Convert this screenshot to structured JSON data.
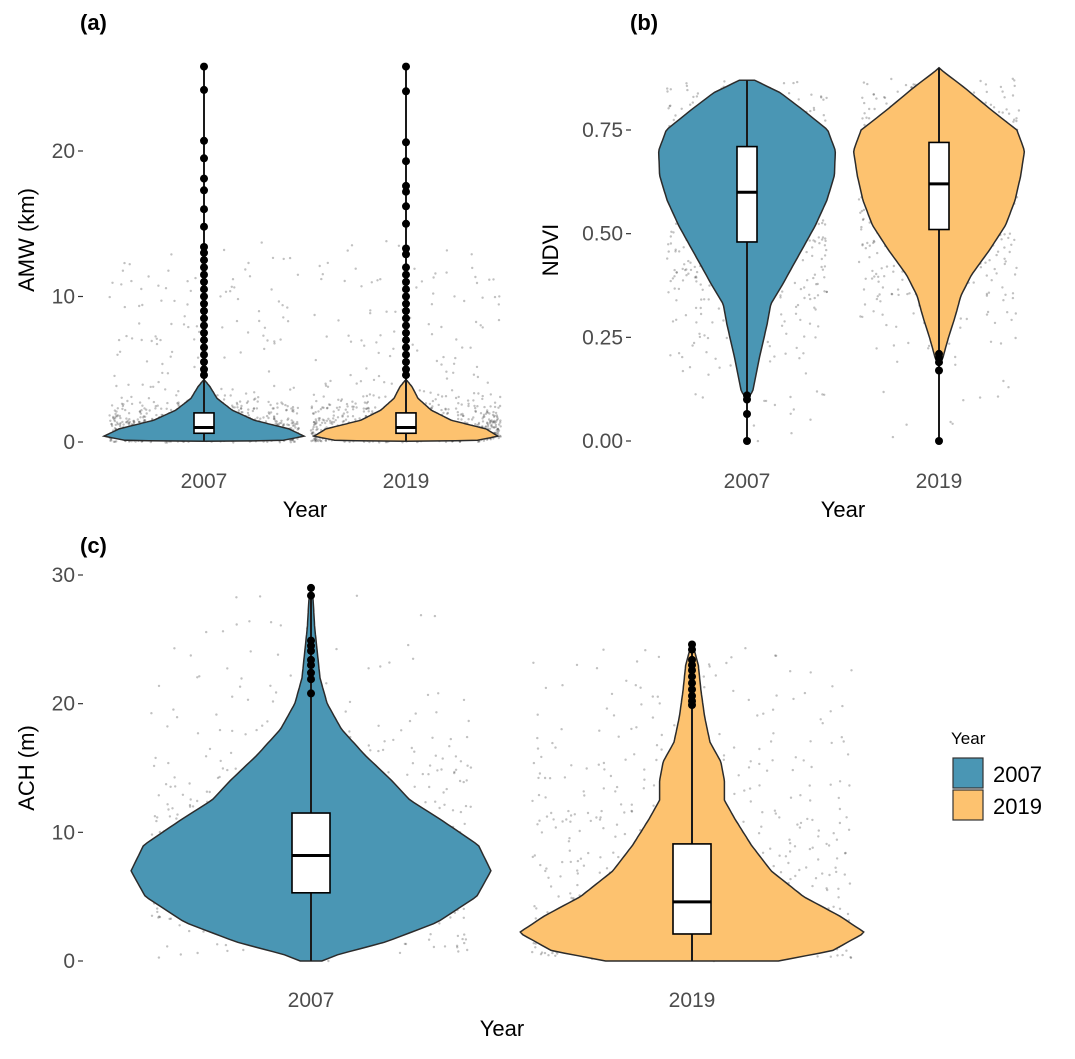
{
  "chart_data": [
    {
      "panel": "(a)",
      "type": "violin",
      "xlabel": "Year",
      "ylabel": "AMW (km)",
      "categories": [
        "2007",
        "2019"
      ],
      "yticks": [
        "0",
        "10",
        "20"
      ],
      "ylim": [
        0,
        26
      ],
      "series": [
        {
          "name": "2007",
          "min": 0.1,
          "q1": 0.6,
          "median": 1.0,
          "q3": 2.0,
          "whisker_high": 4.2,
          "max": 25.8,
          "outliers": [
            25.8,
            24.2,
            20.7,
            19.5,
            18.1,
            17.3,
            16.0,
            14.8,
            13.4,
            13.0,
            12.5,
            12.0,
            11.5,
            11.0,
            10.5,
            10.0,
            9.5,
            9.0,
            8.5,
            8.0,
            7.5,
            7.0,
            6.5,
            6.0,
            5.5,
            5.0,
            4.6
          ],
          "density_peak": 0.6
        },
        {
          "name": "2019",
          "min": 0.1,
          "q1": 0.6,
          "median": 1.0,
          "q3": 2.0,
          "whisker_high": 4.2,
          "max": 25.8,
          "outliers": [
            25.8,
            24.1,
            20.6,
            19.3,
            17.6,
            17.2,
            16.2,
            15.0,
            13.3,
            12.9,
            12.0,
            11.5,
            11.0,
            10.5,
            10.0,
            9.5,
            9.0,
            8.5,
            8.0,
            7.5,
            7.0,
            6.5,
            6.0,
            5.5,
            5.0,
            4.6
          ],
          "density_peak": 0.6
        }
      ]
    },
    {
      "panel": "(b)",
      "type": "violin",
      "xlabel": "Year",
      "ylabel": "NDVI",
      "categories": [
        "2007",
        "2019"
      ],
      "yticks": [
        "0.00",
        "0.25",
        "0.50",
        "0.75"
      ],
      "ylim": [
        0,
        0.9
      ],
      "series": [
        {
          "name": "2007",
          "min": 0.13,
          "q1": 0.48,
          "median": 0.6,
          "q3": 0.71,
          "max": 0.87,
          "outliers": [
            0.11,
            0.1,
            0.065,
            0.0
          ],
          "density_peak": 0.68
        },
        {
          "name": "2019",
          "min": 0.2,
          "q1": 0.51,
          "median": 0.62,
          "q3": 0.72,
          "max": 0.9,
          "outliers": [
            0.21,
            0.2,
            0.19,
            0.17,
            0.0
          ],
          "density_peak": 0.7
        }
      ]
    },
    {
      "panel": "(c)",
      "type": "violin",
      "xlabel": "Year",
      "ylabel": "ACH (m)",
      "categories": [
        "2007",
        "2019"
      ],
      "yticks": [
        "0",
        "10",
        "20",
        "30"
      ],
      "ylim": [
        0,
        30
      ],
      "series": [
        {
          "name": "2007",
          "min": 0.0,
          "q1": 5.3,
          "median": 8.2,
          "q3": 11.5,
          "whisker_high": 20.5,
          "max": 29.0,
          "outliers": [
            29.0,
            28.4,
            24.9,
            24.5,
            24.1,
            23.4,
            23.0,
            22.4,
            21.9,
            20.8
          ],
          "density_peak": 7.0
        },
        {
          "name": "2019",
          "min": 0.0,
          "q1": 2.1,
          "median": 4.6,
          "q3": 9.1,
          "whisker_high": 19.8,
          "max": 24.6,
          "outliers": [
            24.6,
            24.2,
            23.4,
            23.0,
            22.6,
            22.1,
            21.6,
            21.1,
            20.6,
            20.2,
            19.9
          ],
          "density_peak": 2.2
        }
      ]
    }
  ],
  "legend": {
    "title": "Year",
    "items": [
      {
        "label": "2007",
        "color": "#4a96b4"
      },
      {
        "label": "2019",
        "color": "#fdc26f"
      }
    ]
  },
  "colors": {
    "fill_2007": "#4a96b4",
    "fill_2019": "#fdc26f",
    "outline": "#2b2b2b",
    "jitter": "#8c8c8c"
  }
}
